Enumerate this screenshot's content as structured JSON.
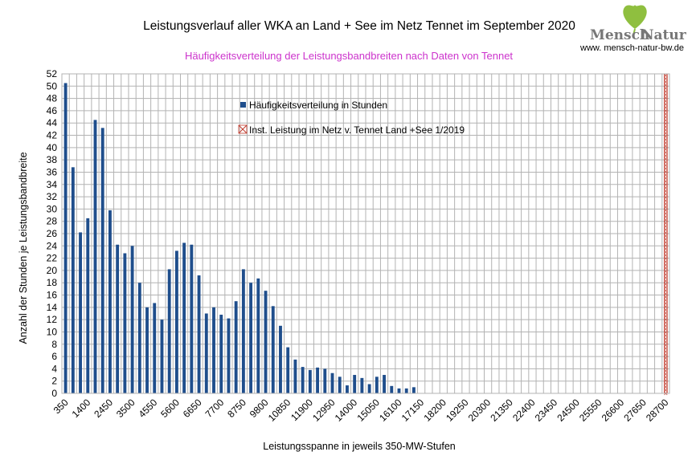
{
  "logo": {
    "left_word": "Mensch",
    "right_word": "Natur",
    "website": "www. mensch-natur-bw.de",
    "leaf_color": "#8fbf3f"
  },
  "chart_data": {
    "type": "bar",
    "title": "Leistungsverlauf aller WKA an Land + See im Netz Tennet im September 2020",
    "subtitle": "Häufigkeitsverteilung der Leistungsbandbreiten nach Daten von Tennet",
    "xlabel": "Leistungsspanne in jeweils 350-MW-Stufen",
    "ylabel": "Anzahl der Stunden je Leistungsbandbreite",
    "ylim": [
      0,
      52
    ],
    "y_ticks": [
      0,
      2,
      4,
      6,
      8,
      10,
      12,
      14,
      16,
      18,
      20,
      22,
      24,
      26,
      28,
      30,
      32,
      34,
      36,
      38,
      40,
      42,
      44,
      46,
      48,
      50,
      52
    ],
    "x_tick_labels": [
      "350",
      "1400",
      "2450",
      "3500",
      "4550",
      "5600",
      "6650",
      "7700",
      "8750",
      "9800",
      "10850",
      "11900",
      "12950",
      "14000",
      "15050",
      "16100",
      "17150",
      "18200",
      "19250",
      "20300",
      "21350",
      "22400",
      "23450",
      "24500",
      "25550",
      "26600",
      "27650",
      "28700"
    ],
    "x_start": 350,
    "x_step": 350,
    "grid": true,
    "legend_position": "top-center",
    "series": [
      {
        "name": "Häufigkeitsverteilung in Stunden",
        "color": "#1f4e8c",
        "values": [
          50.5,
          36.8,
          26.2,
          28.5,
          44.5,
          43.2,
          29.8,
          24.2,
          22.8,
          24,
          18,
          14,
          14.7,
          12,
          20.2,
          23.2,
          24.5,
          24.2,
          19.2,
          13,
          14,
          12.8,
          12.2,
          15,
          20.2,
          18,
          18.7,
          16.7,
          14.2,
          11,
          7.5,
          5.5,
          4.3,
          3.8,
          4.2,
          4,
          3.3,
          2.7,
          1.3,
          3,
          2.5,
          1.5,
          2.7,
          3,
          1.2,
          0.8,
          0.8,
          1
        ]
      },
      {
        "name": "Inst. Leistung im Netz v. Tennet  Land +See 1/2019",
        "color": "#c0392b",
        "x": 28700,
        "marker": "cross-hatch-line"
      }
    ]
  }
}
